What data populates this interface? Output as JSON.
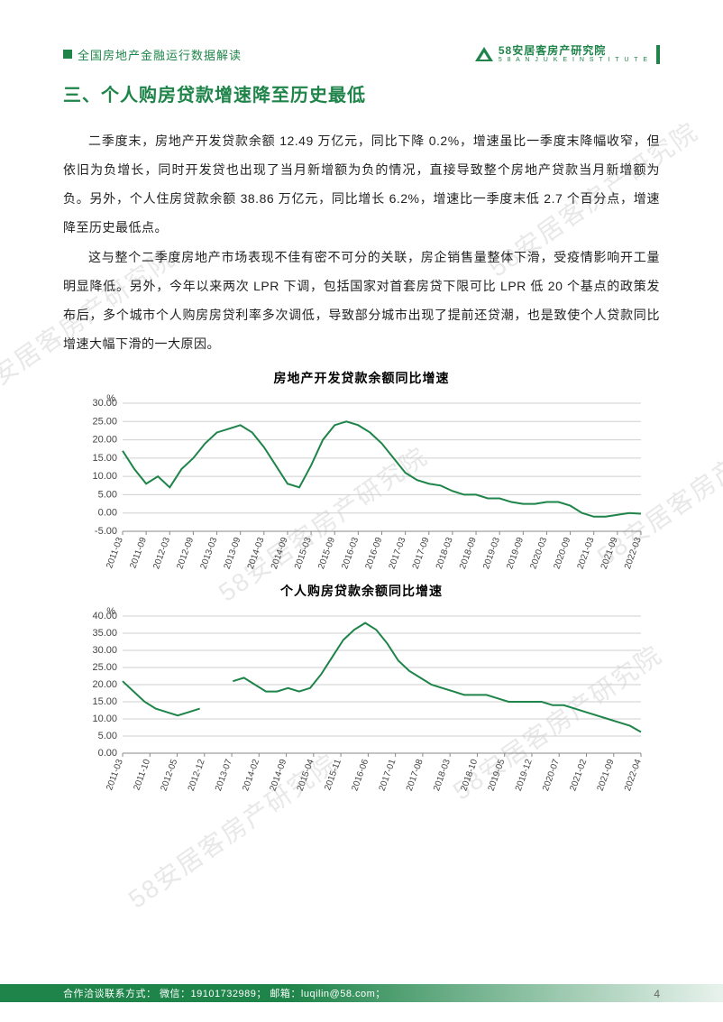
{
  "header": {
    "doc_title": "全国房地产金融运行数据解读",
    "brand_cn": "58安居客房产研究院",
    "brand_en": "5 8  A N J U K E   I N S T I T U T E"
  },
  "section": {
    "heading": "三、个人购房贷款增速降至历史最低"
  },
  "paragraphs": {
    "p1": "二季度末，房地产开发贷款余额 12.49 万亿元，同比下降 0.2%，增速虽比一季度末降幅收窄，但依旧为负增长，同时开发贷也出现了当月新增额为负的情况，直接导致整个房地产贷款当月新增额为负。另外，个人住房贷款余额 38.86 万亿元，同比增长 6.2%，增速比一季度末低 2.7 个百分点，增速降至历史最低点。",
    "p2": "这与整个二季度房地产市场表现不佳有密不可分的关联，房企销售量整体下滑，受疫情影响开工量明显降低。另外，今年以来两次 LPR 下调，包括国家对首套房贷下限可比 LPR 低 20 个基点的政策发布后，多个城市个人购房房贷利率多次调低，导致部分城市出现了提前还贷潮，也是致使个人贷款同比增速大幅下滑的一大原因。"
  },
  "chart1": {
    "type": "line",
    "title": "房地产开发贷款余额同比增速",
    "y_unit": "%",
    "ylim": [
      -5,
      30
    ],
    "ytick_step": 5,
    "yticks_labels": [
      "-5.00",
      "0.00",
      "5.00",
      "10.00",
      "15.00",
      "20.00",
      "25.00",
      "30.00"
    ],
    "line_color": "#1e8449",
    "line_width": 2,
    "grid_color": "#cfcfcf",
    "axis_color": "#888888",
    "label_fontsize": 10,
    "x_labels": [
      "2011-03",
      "2011-09",
      "2012-03",
      "2012-09",
      "2013-03",
      "2013-09",
      "2014-03",
      "2014-09",
      "2015-03",
      "2015-09",
      "2016-03",
      "2016-09",
      "2017-03",
      "2017-09",
      "2018-03",
      "2018-09",
      "2019-03",
      "2019-09",
      "2020-03",
      "2020-09",
      "2021-03",
      "2021-09",
      "2022-03"
    ],
    "values": [
      17,
      12,
      8,
      10,
      7,
      12,
      15,
      19,
      22,
      23,
      24,
      22,
      18,
      13,
      8,
      7,
      13,
      20,
      24,
      25,
      24,
      22,
      19,
      15,
      11,
      9,
      8,
      7.5,
      6,
      5,
      5,
      4,
      4,
      3,
      2.5,
      2.5,
      3,
      3,
      2,
      0,
      -1,
      -1,
      -0.5,
      0,
      -0.2
    ],
    "background_color": "#ffffff"
  },
  "chart2": {
    "type": "line",
    "title": "个人购房贷款余额同比增速",
    "y_unit": "%",
    "ylim": [
      0,
      40
    ],
    "ytick_step": 5,
    "yticks_labels": [
      "0.00",
      "5.00",
      "10.00",
      "15.00",
      "20.00",
      "25.00",
      "30.00",
      "35.00",
      "40.00"
    ],
    "line_color": "#1e8449",
    "line_width": 2,
    "grid_color": "#cfcfcf",
    "axis_color": "#888888",
    "label_fontsize": 10,
    "x_labels": [
      "2011-03",
      "2011-10",
      "2012-05",
      "2012-12",
      "2013-07",
      "2014-02",
      "2014-09",
      "2015-04",
      "2015-11",
      "2016-06",
      "2017-01",
      "2017-08",
      "2018-03",
      "2018-10",
      "2019-05",
      "2019-12",
      "2020-07",
      "2021-02",
      "2021-09",
      "2022-04"
    ],
    "values": [
      21,
      18,
      15,
      13,
      12,
      11,
      12,
      13,
      null,
      null,
      21,
      22,
      20,
      18,
      18,
      19,
      18,
      19,
      23,
      28,
      33,
      36,
      38,
      36,
      32,
      27,
      24,
      22,
      20,
      19,
      18,
      17,
      17,
      17,
      16,
      15,
      15,
      15,
      15,
      14,
      14,
      13,
      12,
      11,
      10,
      9,
      8,
      6.2
    ],
    "background_color": "#ffffff"
  },
  "footer": {
    "contact": "合作洽谈联系方式：  微信：19101732989；  邮箱：luqilin@58.com；",
    "page_num": "4"
  },
  "watermark": {
    "text": "58安居客房产研究院"
  },
  "colors": {
    "brand": "#1e8449",
    "text": "#222222",
    "grid": "#cfcfcf",
    "wm": "#d9d9d9"
  }
}
